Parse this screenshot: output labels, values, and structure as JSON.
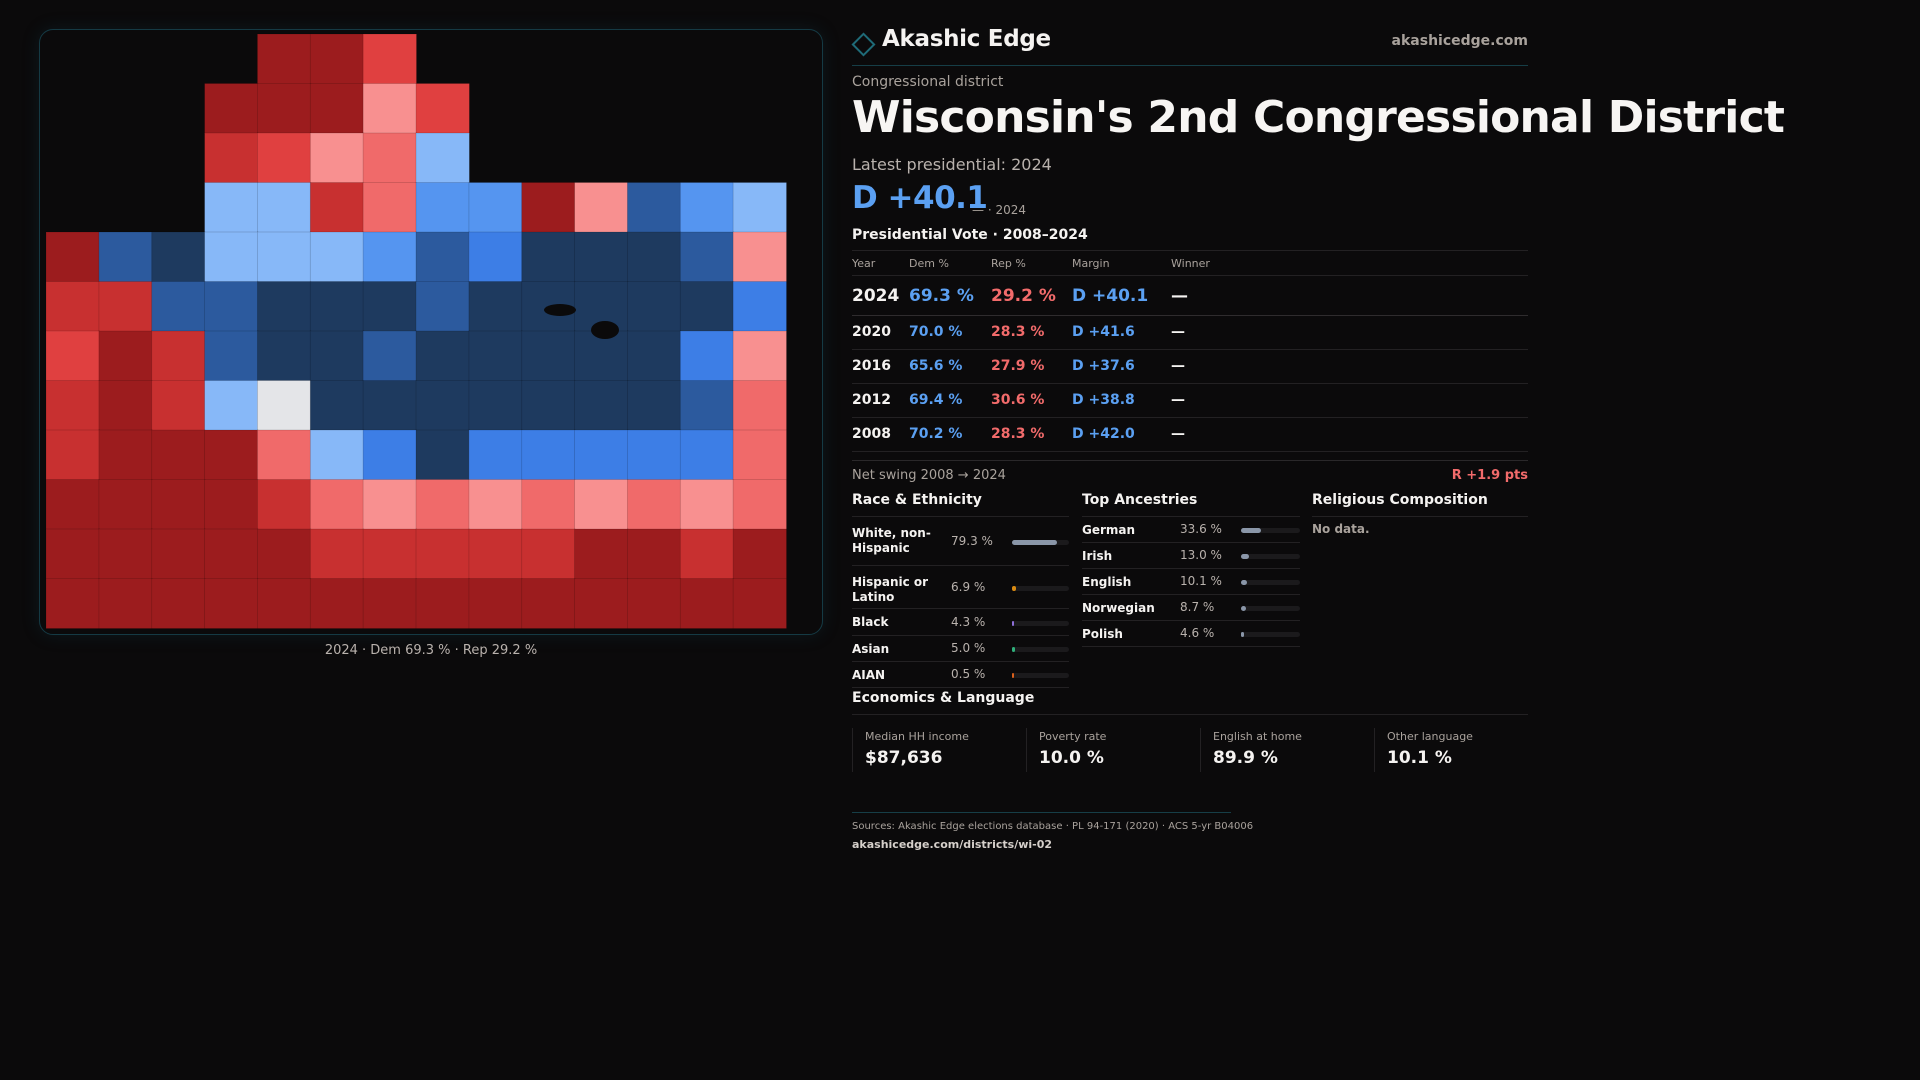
{
  "brand": {
    "name": "Akashic Edge",
    "url": "akashicedge.com",
    "icon": "diamond-outline-icon"
  },
  "page": {
    "kicker": "Congressional district",
    "title": "Wisconsin's 2nd Congressional District",
    "latest_label": "Latest presidential: 2024",
    "latest_margin": "D +40.1",
    "latest_sub": "— · 2024"
  },
  "map": {
    "caption": "2024 · Dem 69.3 % · Rep 29.2 %",
    "legend_colors": {
      "D5": "#1e3a5f",
      "D4": "#2c5a9e",
      "D3": "#3d7ee6",
      "D2": "#5595f0",
      "D1": "#87b8f8",
      "T": "#e4e5e8",
      "R1": "#f89090",
      "R2": "#f06a6a",
      "R3": "#e04040",
      "R4": "#c83030",
      "R5": "#9c1c1e",
      "W": "#0b0a0b"
    },
    "tiles": [
      [
        "W",
        "W",
        "W",
        "W",
        "R5",
        "R5",
        "R3",
        "W",
        "W",
        "W",
        "W",
        "W",
        "W",
        "W"
      ],
      [
        "W",
        "W",
        "W",
        "R5",
        "R5",
        "R5",
        "R1",
        "R3",
        "W",
        "W",
        "W",
        "W",
        "W",
        "W"
      ],
      [
        "W",
        "W",
        "W",
        "R4",
        "R3",
        "R1",
        "R2",
        "D1",
        "W",
        "W",
        "W",
        "W",
        "W",
        "W"
      ],
      [
        "W",
        "W",
        "W",
        "D1",
        "D1",
        "R4",
        "R2",
        "D2",
        "D2",
        "R5",
        "R1",
        "D4",
        "D2",
        "D1"
      ],
      [
        "R5",
        "D4",
        "D5",
        "D1",
        "D1",
        "D1",
        "D2",
        "D4",
        "D3",
        "D5",
        "D5",
        "D5",
        "D4",
        "R1"
      ],
      [
        "R4",
        "R4",
        "D4",
        "D4",
        "D5",
        "D5",
        "D5",
        "D4",
        "D5",
        "D5",
        "D5",
        "D5",
        "D5",
        "D3"
      ],
      [
        "R3",
        "R5",
        "R4",
        "D4",
        "D5",
        "D5",
        "D4",
        "D5",
        "D5",
        "D5",
        "D5",
        "D5",
        "D3",
        "R1"
      ],
      [
        "R4",
        "R5",
        "R4",
        "D1",
        "T",
        "D5",
        "D5",
        "D5",
        "D5",
        "D5",
        "D5",
        "D5",
        "D4",
        "R2"
      ],
      [
        "R4",
        "R5",
        "R5",
        "R5",
        "R2",
        "D1",
        "D3",
        "D5",
        "D3",
        "D3",
        "D3",
        "D3",
        "D3",
        "R2"
      ],
      [
        "R5",
        "R5",
        "R5",
        "R5",
        "R4",
        "R2",
        "R1",
        "R2",
        "R1",
        "R2",
        "R1",
        "R2",
        "R1",
        "R2"
      ],
      [
        "R5",
        "R5",
        "R5",
        "R5",
        "R5",
        "R4",
        "R4",
        "R4",
        "R4",
        "R4",
        "R5",
        "R5",
        "R4",
        "R5"
      ],
      [
        "R5",
        "R5",
        "R5",
        "R5",
        "R5",
        "R5",
        "R5",
        "R5",
        "R5",
        "R5",
        "R5",
        "R5",
        "R5",
        "R5"
      ]
    ]
  },
  "vote": {
    "section_title": "Presidential Vote · 2008–2024",
    "headers": {
      "year": "Year",
      "dem": "Dem %",
      "rep": "Rep %",
      "margin": "Margin",
      "winner": "Winner"
    },
    "rows": [
      {
        "year": "2024",
        "dem": "69.3 %",
        "rep": "29.2 %",
        "margin": "D +40.1",
        "winner": "—"
      },
      {
        "year": "2020",
        "dem": "70.0 %",
        "rep": "28.3 %",
        "margin": "D +41.6",
        "winner": "—"
      },
      {
        "year": "2016",
        "dem": "65.6 %",
        "rep": "27.9 %",
        "margin": "D +37.6",
        "winner": "—"
      },
      {
        "year": "2012",
        "dem": "69.4 %",
        "rep": "30.6 %",
        "margin": "D +38.8",
        "winner": "—"
      },
      {
        "year": "2008",
        "dem": "70.2 %",
        "rep": "28.3 %",
        "margin": "D +42.0",
        "winner": "—"
      }
    ],
    "swing_label": "Net swing 2008 → 2024",
    "swing_value": "R +1.9 pts"
  },
  "race": {
    "title": "Race & Ethnicity",
    "rows": [
      {
        "label": "White, non-Hispanic",
        "value": "79.3 %",
        "pct": 79.3,
        "color": "#8a96a8"
      },
      {
        "label": "Hispanic or Latino",
        "value": "6.9 %",
        "pct": 6.9,
        "color": "#d98a12"
      },
      {
        "label": "Black",
        "value": "4.3 %",
        "pct": 4.3,
        "color": "#8e6fd8"
      },
      {
        "label": "Asian",
        "value": "5.0 %",
        "pct": 5.0,
        "color": "#2fae7a"
      },
      {
        "label": "AIAN",
        "value": "0.5 %",
        "pct": 0.5,
        "color": "#d9601c"
      }
    ]
  },
  "ancestry": {
    "title": "Top Ancestries",
    "rows": [
      {
        "label": "German",
        "value": "33.6 %",
        "pct": 33.6,
        "color": "#8a96a8"
      },
      {
        "label": "Irish",
        "value": "13.0 %",
        "pct": 13.0,
        "color": "#8a96a8"
      },
      {
        "label": "English",
        "value": "10.1 %",
        "pct": 10.1,
        "color": "#8a96a8"
      },
      {
        "label": "Norwegian",
        "value": "8.7 %",
        "pct": 8.7,
        "color": "#8a96a8"
      },
      {
        "label": "Polish",
        "value": "4.6 %",
        "pct": 4.6,
        "color": "#8a96a8"
      }
    ]
  },
  "religion": {
    "title": "Religious Composition",
    "empty_text": "No data."
  },
  "econ": {
    "title": "Economics & Language",
    "cells": [
      {
        "label": "Median HH income",
        "value": "$87,636"
      },
      {
        "label": "Poverty rate",
        "value": "10.0 %"
      },
      {
        "label": "English at home",
        "value": "89.9 %"
      },
      {
        "label": "Other language",
        "value": "10.1 %"
      }
    ]
  },
  "footer": {
    "sources": "Sources: Akashic Edge elections database · PL 94-171 (2020) · ACS 5-yr B04006",
    "url": "akashicedge.com/districts/wi-02"
  }
}
